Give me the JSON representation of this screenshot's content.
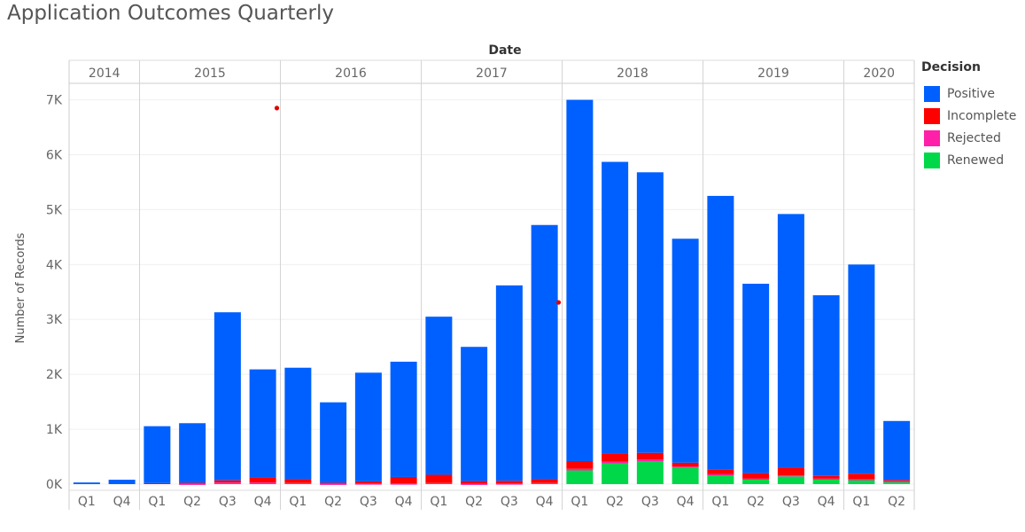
{
  "title": "Application Outcomes Quarterly",
  "chart_data": {
    "type": "bar",
    "stacked": true,
    "title": "Application Outcomes Quarterly",
    "xlabel": "Date",
    "ylabel": "Number of Records",
    "ylim": [
      0,
      7300
    ],
    "yticks": [
      {
        "value": 0,
        "label": "0K"
      },
      {
        "value": 1000,
        "label": "1K"
      },
      {
        "value": 2000,
        "label": "2K"
      },
      {
        "value": 3000,
        "label": "3K"
      },
      {
        "value": 4000,
        "label": "4K"
      },
      {
        "value": 5000,
        "label": "5K"
      },
      {
        "value": 6000,
        "label": "6K"
      },
      {
        "value": 7000,
        "label": "7K"
      }
    ],
    "years": [
      {
        "label": "2014",
        "quarters": [
          "Q1",
          "Q4"
        ]
      },
      {
        "label": "2015",
        "quarters": [
          "Q1",
          "Q2",
          "Q3",
          "Q4"
        ]
      },
      {
        "label": "2016",
        "quarters": [
          "Q1",
          "Q2",
          "Q3",
          "Q4"
        ]
      },
      {
        "label": "2017",
        "quarters": [
          "Q1",
          "Q2",
          "Q3",
          "Q4"
        ]
      },
      {
        "label": "2018",
        "quarters": [
          "Q1",
          "Q2",
          "Q3",
          "Q4"
        ]
      },
      {
        "label": "2019",
        "quarters": [
          "Q1",
          "Q2",
          "Q3",
          "Q4"
        ]
      },
      {
        "label": "2020",
        "quarters": [
          "Q1",
          "Q2"
        ]
      }
    ],
    "legend_title": "Decision",
    "legend_position": "right",
    "grid": true,
    "series": [
      {
        "name": "Renewed",
        "color": "#00d84a",
        "values": [
          0,
          0,
          0,
          0,
          0,
          0,
          0,
          0,
          0,
          0,
          0,
          0,
          0,
          0,
          250,
          380,
          420,
          300,
          170,
          90,
          140,
          90,
          80,
          50
        ]
      },
      {
        "name": "Rejected",
        "color": "#ff1fa8",
        "values": [
          0,
          0,
          0,
          5,
          30,
          30,
          20,
          5,
          10,
          10,
          20,
          5,
          10,
          20,
          30,
          30,
          30,
          20,
          10,
          10,
          20,
          10,
          10,
          5
        ]
      },
      {
        "name": "Incomplete",
        "color": "#ff0000",
        "values": [
          0,
          0,
          20,
          20,
          40,
          90,
          70,
          20,
          40,
          120,
          150,
          50,
          50,
          70,
          140,
          140,
          120,
          70,
          90,
          100,
          140,
          50,
          100,
          20
        ]
      },
      {
        "name": "Positive",
        "color": "#0060ff",
        "values": [
          30,
          80,
          1035,
          1085,
          3060,
          1970,
          2030,
          1465,
          1980,
          2100,
          2880,
          2445,
          3560,
          4630,
          6580,
          5320,
          5110,
          4080,
          4980,
          3450,
          4620,
          3290,
          3810,
          1075
        ]
      }
    ],
    "annotations": [
      {
        "type": "point",
        "x": "2015 Q4",
        "y": 6850,
        "color": "#e00000"
      },
      {
        "type": "point",
        "x": "2017 Q4",
        "y": 3310,
        "color": "#e00000"
      }
    ]
  }
}
